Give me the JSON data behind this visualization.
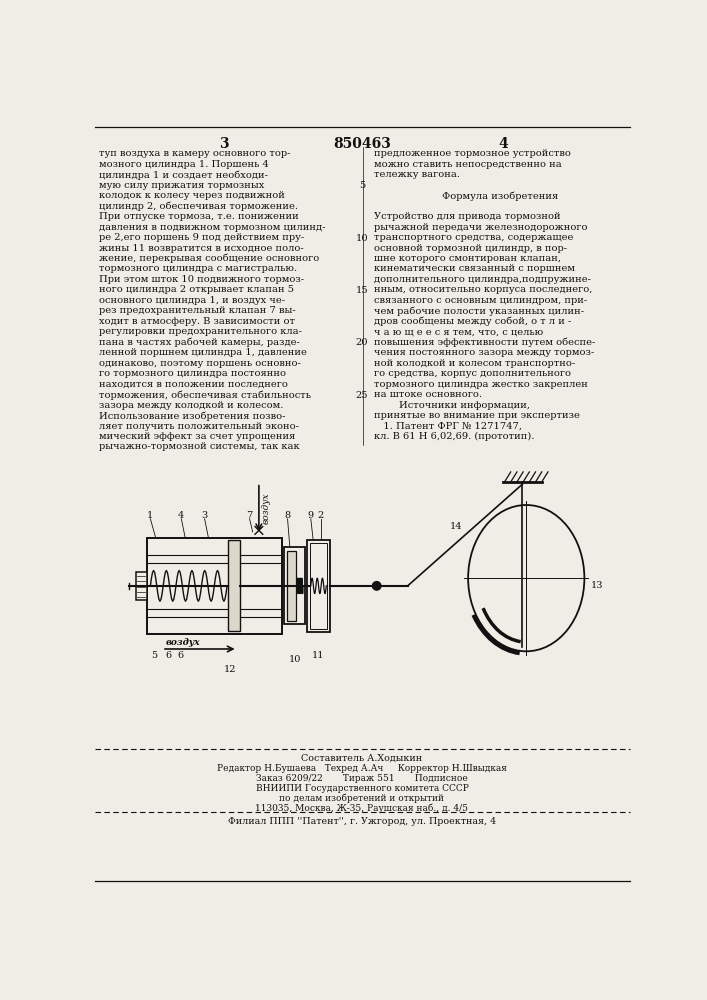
{
  "page_num_left": "3",
  "page_num_center": "850463",
  "page_num_right": "4",
  "bg_color": "#f0ede6",
  "text_color": "#111111",
  "left_column_text": [
    "туп воздуха в камеру основного тор-",
    "мозного цилиндра 1. Поршень 4",
    "цилиндра 1 и создает необходи-",
    "мую силу прижатия тормозных",
    "колодок к колесу через подвижной",
    "цилиндр 2, обеспечивая торможение.",
    "При отпуске тормоза, т.е. понижении",
    "давления в подвижном тормозном цилинд-",
    "ре 2,его поршень 9 под действием пру-",
    "жины 11 возвратится в исходное поло-",
    "жение, перекрывая сообщение основного",
    "тормозного цилиндра с магистралью.",
    "При этом шток 10 подвижного тормоз-",
    "ного цилиндра 2 открывает клапан 5",
    "основного цилиндра 1, и воздух че-",
    "рез предохранительный клапан 7 вы-",
    "ходит в атмосферу. В зависимости от",
    "регулировки предохранительного кла-",
    "пана в частях рабочей камеры, разде-",
    "ленной поршнем цилиндра 1, давление",
    "одинаково, поэтому поршень основно-",
    "го тормозного цилиндра постоянно",
    "находится в положении последнего",
    "торможения, обеспечивая стабильность",
    "зазора между колодкой и колесом.",
    "Использование изобретения позво-",
    "ляет получить положительный эконо-",
    "мический эффект за счет упрощения",
    "рычажно-тормозной системы, так как"
  ],
  "right_col_header": [
    "предложенное тормозное устройство",
    "можно ставить непосредственно на",
    "тележку вагона."
  ],
  "formula_title": "Формула изобретения",
  "right_col_body": [
    "Устройство для привода тормозной",
    "рычажной передачи железнодорожного",
    "транспортного средства, содержащее",
    "основной тормозной цилиндр, в пор-",
    "шне которого смонтирован клапан,",
    "кинематически связанный с поршнем",
    "дополнительного цилиндра,подпружине-",
    "нным, относительно корпуса последнего,",
    "связанного с основным цилиндром, при-",
    "чем рабочие полости указанных цилин-",
    "дров сообщены между собой, о т л и -",
    "ч а ю щ е е с я тем, что, с целью",
    "повышения эффективности путем обеспе-",
    "чения постоянного зазора между тормоз-",
    "ной колодкой и колесом транспортно-",
    "го средства, корпус дополнительного",
    "тормозного цилиндра жестко закреплен",
    "на штоке основного.",
    "        Источники информации,",
    "принятые во внимание при экспертизе",
    "   1. Патент ФРГ № 1271747,",
    "кл. В 61 Н 6,02,69. (прототип)."
  ],
  "line_numbers": [
    "5",
    "10",
    "15",
    "20",
    "25"
  ],
  "footer_lines": [
    "Составитель А.Ходыкин",
    "Редактор Н.Бушаева   Техред А.Ач     Корректор Н.Швыдкая",
    "Заказ 6209/22       Тираж 551       Подписное",
    "ВНИИПИ Государственного комитета СССР",
    "по делам изобретений и открытий",
    "113035, Москва, Ж-35, Раушская наб., д. 4/5",
    "Филиал ППП ''Патент'', г. Ужгород, ул. Проектная, 4"
  ]
}
